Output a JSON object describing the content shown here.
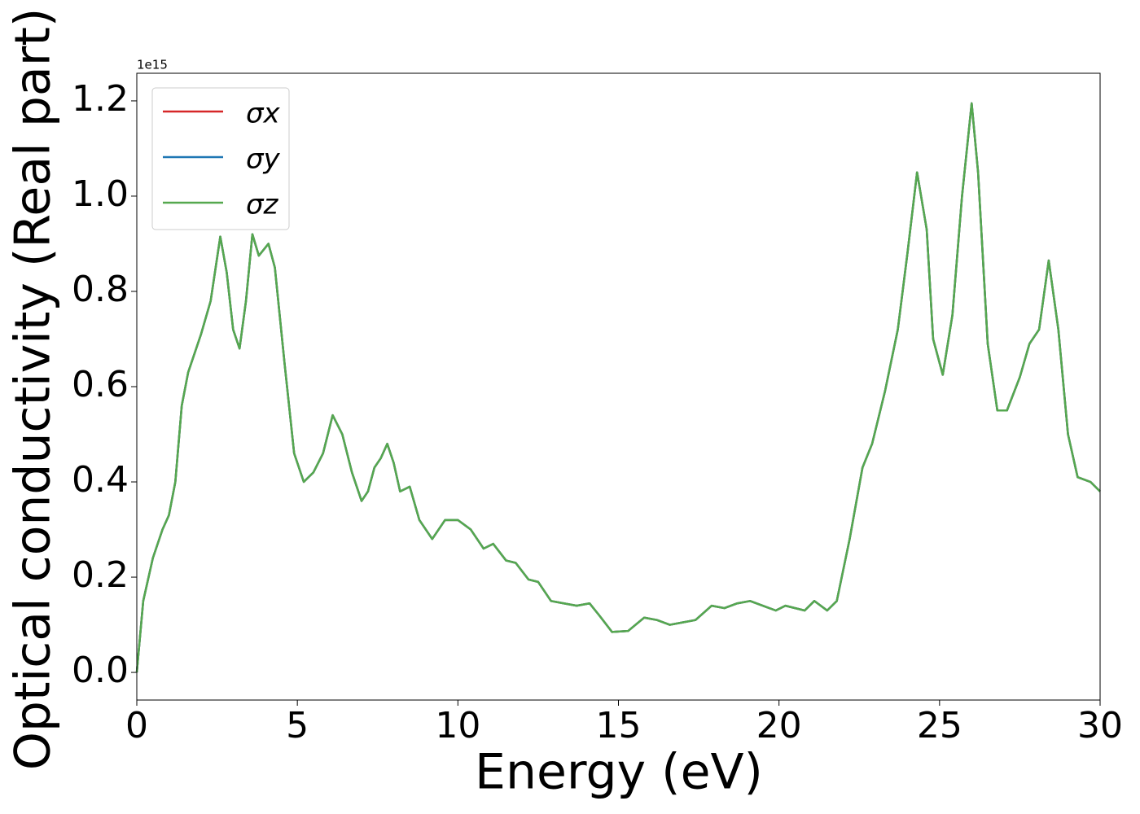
{
  "chart_data": {
    "type": "line",
    "xlabel": "Energy (eV)",
    "ylabel": "Optical conductivity (Real part)",
    "y_offset_text": "1e15",
    "xlim": [
      0,
      30
    ],
    "xticks": [
      0,
      5,
      10,
      15,
      20,
      25,
      30
    ],
    "ylim": [
      -0.058,
      1.258
    ],
    "yticks": [
      {
        "value": 0,
        "label": "0.0"
      },
      0.2,
      0.4,
      0.6,
      0.8,
      {
        "value": 1,
        "label": "1.0"
      },
      1.2
    ],
    "legend": "upper left",
    "x": [
      0,
      0.2,
      0.5,
      0.8,
      1.0,
      1.2,
      1.4,
      1.6,
      2.0,
      2.3,
      2.6,
      2.8,
      3.0,
      3.2,
      3.4,
      3.6,
      3.8,
      4.1,
      4.3,
      4.6,
      4.9,
      5.2,
      5.5,
      5.8,
      6.1,
      6.4,
      6.7,
      7.0,
      7.2,
      7.4,
      7.6,
      7.8,
      8.0,
      8.2,
      8.5,
      8.8,
      9.2,
      9.6,
      10.0,
      10.4,
      10.8,
      11.1,
      11.5,
      11.8,
      12.2,
      12.5,
      12.9,
      13.3,
      13.7,
      14.1,
      14.4,
      14.8,
      15.3,
      15.8,
      16.2,
      16.6,
      17.0,
      17.4,
      17.9,
      18.3,
      18.7,
      19.1,
      19.5,
      19.9,
      20.2,
      20.8,
      21.1,
      21.5,
      21.8,
      22.2,
      22.6,
      22.9,
      23.3,
      23.7,
      24.0,
      24.3,
      24.6,
      24.8,
      25.1,
      25.4,
      25.7,
      26.0,
      26.2,
      26.5,
      26.8,
      27.1,
      27.5,
      27.8,
      28.1,
      28.4,
      28.7,
      29.0,
      29.3,
      29.7,
      30.0
    ],
    "series": [
      {
        "name": "σx",
        "color": "#d62728",
        "values": [
          0,
          0.15,
          0.24,
          0.3,
          0.33,
          0.4,
          0.56,
          0.63,
          0.71,
          0.78,
          0.915,
          0.84,
          0.72,
          0.68,
          0.78,
          0.92,
          0.875,
          0.9,
          0.85,
          0.65,
          0.46,
          0.4,
          0.42,
          0.46,
          0.54,
          0.5,
          0.42,
          0.36,
          0.38,
          0.43,
          0.45,
          0.48,
          0.44,
          0.38,
          0.39,
          0.32,
          0.28,
          0.32,
          0.32,
          0.3,
          0.26,
          0.27,
          0.235,
          0.23,
          0.195,
          0.19,
          0.15,
          0.145,
          0.14,
          0.145,
          0.12,
          0.085,
          0.087,
          0.115,
          0.11,
          0.1,
          0.105,
          0.11,
          0.14,
          0.135,
          0.145,
          0.15,
          0.14,
          0.13,
          0.14,
          0.13,
          0.15,
          0.13,
          0.15,
          0.28,
          0.43,
          0.48,
          0.59,
          0.72,
          0.88,
          1.05,
          0.93,
          0.7,
          0.625,
          0.75,
          1.0,
          1.195,
          1.05,
          0.69,
          0.55,
          0.55,
          0.62,
          0.69,
          0.72,
          0.865,
          0.72,
          0.5,
          0.41,
          0.4,
          0.38
        ]
      },
      {
        "name": "σy",
        "color": "#1f77b4",
        "values": [
          0,
          0.15,
          0.24,
          0.3,
          0.33,
          0.4,
          0.56,
          0.63,
          0.71,
          0.78,
          0.915,
          0.84,
          0.72,
          0.68,
          0.78,
          0.92,
          0.875,
          0.9,
          0.85,
          0.65,
          0.46,
          0.4,
          0.42,
          0.46,
          0.54,
          0.5,
          0.42,
          0.36,
          0.38,
          0.43,
          0.45,
          0.48,
          0.44,
          0.38,
          0.39,
          0.32,
          0.28,
          0.32,
          0.32,
          0.3,
          0.26,
          0.27,
          0.235,
          0.23,
          0.195,
          0.19,
          0.15,
          0.145,
          0.14,
          0.145,
          0.12,
          0.085,
          0.087,
          0.115,
          0.11,
          0.1,
          0.105,
          0.11,
          0.14,
          0.135,
          0.145,
          0.15,
          0.14,
          0.13,
          0.14,
          0.13,
          0.15,
          0.13,
          0.15,
          0.28,
          0.43,
          0.48,
          0.59,
          0.72,
          0.88,
          1.05,
          0.93,
          0.7,
          0.625,
          0.75,
          1.0,
          1.195,
          1.05,
          0.69,
          0.55,
          0.55,
          0.62,
          0.69,
          0.72,
          0.865,
          0.72,
          0.5,
          0.41,
          0.4,
          0.38
        ]
      },
      {
        "name": "σz",
        "color": "#55a84f",
        "values": [
          0,
          0.15,
          0.24,
          0.3,
          0.33,
          0.4,
          0.56,
          0.63,
          0.71,
          0.78,
          0.915,
          0.84,
          0.72,
          0.68,
          0.78,
          0.92,
          0.875,
          0.9,
          0.85,
          0.65,
          0.46,
          0.4,
          0.42,
          0.46,
          0.54,
          0.5,
          0.42,
          0.36,
          0.38,
          0.43,
          0.45,
          0.48,
          0.44,
          0.38,
          0.39,
          0.32,
          0.28,
          0.32,
          0.32,
          0.3,
          0.26,
          0.27,
          0.235,
          0.23,
          0.195,
          0.19,
          0.15,
          0.145,
          0.14,
          0.145,
          0.12,
          0.085,
          0.087,
          0.115,
          0.11,
          0.1,
          0.105,
          0.11,
          0.14,
          0.135,
          0.145,
          0.15,
          0.14,
          0.13,
          0.14,
          0.13,
          0.15,
          0.13,
          0.15,
          0.28,
          0.43,
          0.48,
          0.59,
          0.72,
          0.88,
          1.05,
          0.93,
          0.7,
          0.625,
          0.75,
          1.0,
          1.195,
          1.05,
          0.69,
          0.55,
          0.55,
          0.62,
          0.69,
          0.72,
          0.865,
          0.72,
          0.5,
          0.41,
          0.4,
          0.38
        ]
      }
    ]
  }
}
